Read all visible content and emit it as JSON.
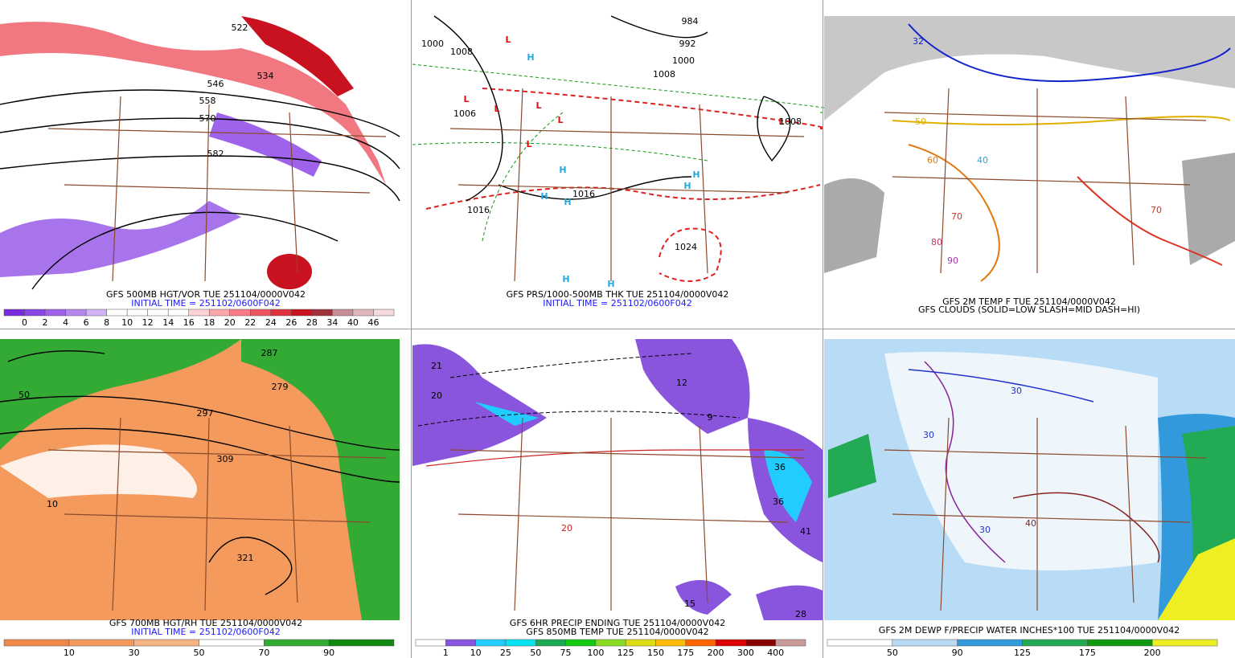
{
  "panels": [
    {
      "captions": [
        {
          "text": "GFS 500MB HGT/VOR TUE 251104/0000V042",
          "color": "#000000"
        },
        {
          "text": "INITIAL TIME = 251102/0600F042",
          "color": "#1a1aff"
        }
      ],
      "colorbar": {
        "labels": [
          0,
          2,
          4,
          6,
          8,
          10,
          12,
          14,
          16,
          18,
          20,
          22,
          24,
          26,
          28,
          34,
          40,
          46
        ],
        "colors": [
          "#7a2be0",
          "#8a45e6",
          "#9e63ea",
          "#b686ef",
          "#d2b4f5",
          "#ffffff",
          "#ffffff",
          "#ffffff",
          "#ffffff",
          "#ffd0d4",
          "#ffa6ad",
          "#f97c86",
          "#ee5560",
          "#e0303e",
          "#c8121f",
          "#a0303a",
          "#c48e94",
          "#e0b6bb",
          "#f5d8dc"
        ]
      },
      "annotations": [
        {
          "text": "522",
          "color": "#000000"
        },
        {
          "text": "534",
          "color": "#000000"
        },
        {
          "text": "546",
          "color": "#000000"
        },
        {
          "text": "558",
          "color": "#000000"
        },
        {
          "text": "570",
          "color": "#000000"
        },
        {
          "text": "582",
          "color": "#000000"
        }
      ]
    },
    {
      "captions": [
        {
          "text": "GFS PRS/1000-500MB THK TUE 251104/0000V042",
          "color": "#000000"
        },
        {
          "text": "INITIAL TIME = 251102/0600F042",
          "color": "#1a1aff"
        }
      ],
      "annotations": [
        {
          "text": "L",
          "color": "#dd1111"
        },
        {
          "text": "L",
          "color": "#dd1111"
        },
        {
          "text": "L",
          "color": "#dd1111"
        },
        {
          "text": "L",
          "color": "#dd1111"
        },
        {
          "text": "L",
          "color": "#dd1111"
        },
        {
          "text": "L",
          "color": "#dd1111"
        },
        {
          "text": "L",
          "color": "#dd1111"
        },
        {
          "text": "H",
          "color": "#22aadd"
        },
        {
          "text": "H",
          "color": "#22aadd"
        },
        {
          "text": "H",
          "color": "#22aadd"
        },
        {
          "text": "H",
          "color": "#22aadd"
        },
        {
          "text": "H",
          "color": "#22aadd"
        },
        {
          "text": "H",
          "color": "#22aadd"
        },
        {
          "text": "H",
          "color": "#22aadd"
        },
        {
          "text": "H",
          "color": "#22aadd"
        },
        {
          "text": "1000",
          "color": "#000000"
        },
        {
          "text": "1008",
          "color": "#000000"
        },
        {
          "text": "984",
          "color": "#000000"
        },
        {
          "text": "992",
          "color": "#000000"
        },
        {
          "text": "1000",
          "color": "#000000"
        },
        {
          "text": "1008",
          "color": "#000000"
        },
        {
          "text": "1016",
          "color": "#000000"
        },
        {
          "text": "1016",
          "color": "#000000"
        },
        {
          "text": "1024",
          "color": "#000000"
        },
        {
          "text": "1008",
          "color": "#000000"
        },
        {
          "text": "1006",
          "color": "#000000"
        }
      ]
    },
    {
      "captions": [
        {
          "text": "GFS 2M TEMP F TUE 251104/0000V042",
          "color": "#000000"
        },
        {
          "text": "GFS CLOUDS (SOLID=LOW SLASH=MID DASH=HI)",
          "color": "#000000"
        }
      ],
      "annotations": [
        {
          "text": "32",
          "color": "#1122cc"
        },
        {
          "text": "40",
          "color": "#22aadd"
        },
        {
          "text": "50",
          "color": "#e0b000"
        },
        {
          "text": "60",
          "color": "#e07a10"
        },
        {
          "text": "70",
          "color": "#dd3322"
        },
        {
          "text": "80",
          "color": "#cc3366"
        },
        {
          "text": "90",
          "color": "#aa33aa"
        },
        {
          "text": "70",
          "color": "#dd3322"
        }
      ]
    },
    {
      "captions": [
        {
          "text": "GFS 700MB HGT/RH TUE 251104/0000V042",
          "color": "#000000"
        },
        {
          "text": "INITIAL TIME = 251102/0600F042",
          "color": "#1a1aff"
        }
      ],
      "colorbar": {
        "labels": [
          10,
          30,
          50,
          70,
          90
        ],
        "colors": [
          "#ee8844",
          "#f39a5c",
          "#f7b584",
          "#ffffff",
          "#33aa33",
          "#118811"
        ]
      },
      "annotations": [
        {
          "text": "50",
          "color": "#000000"
        },
        {
          "text": "10",
          "color": "#000000"
        },
        {
          "text": "321",
          "color": "#000000"
        },
        {
          "text": "309",
          "color": "#000000"
        },
        {
          "text": "297",
          "color": "#000000"
        },
        {
          "text": "279",
          "color": "#000000"
        },
        {
          "text": "287",
          "color": "#000000"
        }
      ]
    },
    {
      "captions": [
        {
          "text": "GFS 6HR PRECIP ENDING TUE 251104/0000V042",
          "color": "#000000"
        },
        {
          "text": "GFS 850MB TEMP TUE 251104/0000V042",
          "color": "#000000"
        }
      ],
      "colorbar": {
        "labels": [
          1,
          10,
          25,
          50,
          75,
          100,
          125,
          150,
          175,
          200,
          300,
          400
        ],
        "colors": [
          "#ffffff",
          "#8a55dd",
          "#22ccff",
          "#00e5ee",
          "#1aaa55",
          "#11cc11",
          "#88dd22",
          "#dddd11",
          "#ffbb00",
          "#ff6600",
          "#dd0000",
          "#880000",
          "#c89a9a"
        ]
      },
      "annotations": [
        {
          "text": "21",
          "color": "#000000"
        },
        {
          "text": "20",
          "color": "#000000"
        },
        {
          "text": "12",
          "color": "#000000"
        },
        {
          "text": "9",
          "color": "#000000"
        },
        {
          "text": "36",
          "color": "#000000"
        },
        {
          "text": "36",
          "color": "#000000"
        },
        {
          "text": "41",
          "color": "#000000"
        },
        {
          "text": "15",
          "color": "#000000"
        },
        {
          "text": "20",
          "color": "#cc2222"
        },
        {
          "text": "28",
          "color": "#000000"
        }
      ]
    },
    {
      "captions": [
        {
          "text": "GFS 2M DEWP F/PRECIP WATER INCHES*100 TUE 251104/0000V042",
          "color": "#000000"
        }
      ],
      "colorbar": {
        "labels": [
          50,
          90,
          125,
          175,
          200
        ],
        "colors": [
          "#ffffff",
          "#b8dcf5",
          "#3399dd",
          "#22aa55",
          "#119911",
          "#eeee22"
        ]
      },
      "annotations": [
        {
          "text": "30",
          "color": "#2233cc"
        },
        {
          "text": "40",
          "color": "#882222"
        },
        {
          "text": "30",
          "color": "#2233cc"
        },
        {
          "text": "30",
          "color": "#2233cc"
        }
      ]
    }
  ]
}
